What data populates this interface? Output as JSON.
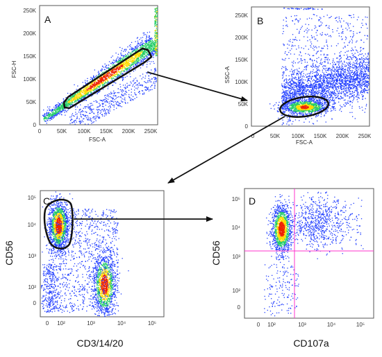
{
  "panels": {
    "A": {
      "label": "A",
      "xlabel": "FSC-A",
      "ylabel": "FSC-H",
      "xticks": [
        "0",
        "50K",
        "100K",
        "150K",
        "200K",
        "250K"
      ],
      "yticks": [
        "0",
        "50K",
        "100K",
        "150K",
        "200K",
        "250K"
      ]
    },
    "B": {
      "label": "B",
      "xlabel": "FSC-A",
      "ylabel": "SSC-A",
      "xticks": [
        "0",
        "50K",
        "100K",
        "150K",
        "200K",
        "250K"
      ],
      "yticks": [
        "0",
        "50K",
        "100K",
        "150K",
        "200K",
        "250K"
      ]
    },
    "C": {
      "label": "C",
      "xlabel": "CD3/14/20",
      "ylabel": "CD56",
      "xticks": [
        "0",
        "10²",
        "10³",
        "10⁴",
        "10⁵"
      ],
      "yticks": [
        "0",
        "10²",
        "10³",
        "10⁴",
        "10⁵"
      ]
    },
    "D": {
      "label": "D",
      "xlabel": "CD107a",
      "ylabel": "CD56",
      "xticks": [
        "0",
        "10²",
        "10³",
        "10⁴",
        "10⁵"
      ],
      "yticks": [
        "0",
        "10²",
        "10³",
        "10⁴",
        "10⁵"
      ]
    }
  },
  "colors": {
    "density_low": "#1f3cff",
    "density_mid": "#22cc66",
    "density_high": "#ffdd00",
    "density_peak": "#ee2200",
    "gate": "#111111",
    "quadrant": "#ff33cc"
  }
}
